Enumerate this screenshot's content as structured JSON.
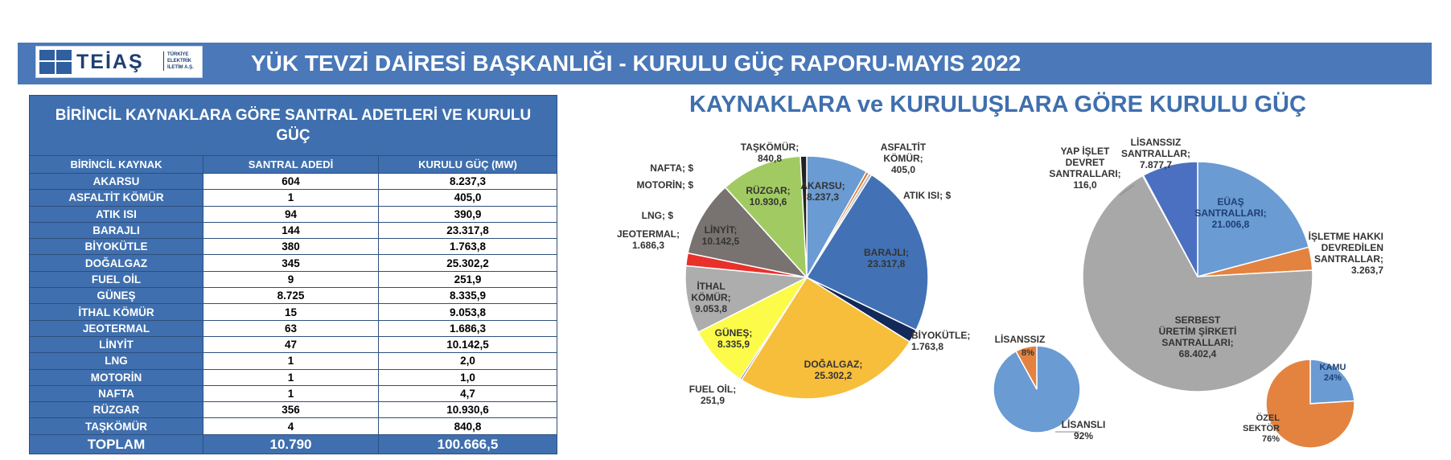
{
  "banner": {
    "title": "YÜK TEVZİ DAİRESİ BAŞKANLIĞI - KURULU GÜÇ RAPORU-MAYIS 2022",
    "logo_text": "TEİAŞ",
    "logo_sub": "TÜRKİYE ELEKTRİK İLETİM A.Ş.",
    "color": "#4a78b8"
  },
  "table": {
    "title": "BİRİNCİL KAYNAKLARA GÖRE SANTRAL ADETLERİ VE KURULU GÜÇ",
    "headers": [
      "BİRİNCİL KAYNAK",
      "SANTRAL ADEDİ",
      "KURULU GÜÇ (MW)"
    ],
    "rows": [
      {
        "source": "AKARSU",
        "count": "604",
        "power": "8.237,3"
      },
      {
        "source": "ASFALTİT KÖMÜR",
        "count": "1",
        "power": "405,0"
      },
      {
        "source": "ATIK ISI",
        "count": "94",
        "power": "390,9"
      },
      {
        "source": "BARAJLI",
        "count": "144",
        "power": "23.317,8"
      },
      {
        "source": "BİYOKÜTLE",
        "count": "380",
        "power": "1.763,8"
      },
      {
        "source": "DOĞALGAZ",
        "count": "345",
        "power": "25.302,2"
      },
      {
        "source": "FUEL OİL",
        "count": "9",
        "power": "251,9"
      },
      {
        "source": "GÜNEŞ",
        "count": "8.725",
        "power": "8.335,9"
      },
      {
        "source": "İTHAL KÖMÜR",
        "count": "15",
        "power": "9.053,8"
      },
      {
        "source": "JEOTERMAL",
        "count": "63",
        "power": "1.686,3"
      },
      {
        "source": "LİNYİT",
        "count": "47",
        "power": "10.142,5"
      },
      {
        "source": "LNG",
        "count": "1",
        "power": "2,0"
      },
      {
        "source": "MOTORİN",
        "count": "1",
        "power": "1,0"
      },
      {
        "source": "NAFTA",
        "count": "1",
        "power": "4,7"
      },
      {
        "source": "RÜZGAR",
        "count": "356",
        "power": "10.930,6"
      },
      {
        "source": "TAŞKÖMÜR",
        "count": "4",
        "power": "840,8"
      }
    ],
    "total": {
      "label": "TOPLAM",
      "count": "10.790",
      "power": "100.666,5"
    }
  },
  "charts_title": "KAYNAKLARA ve KURULUŞLARA GÖRE KURULU GÜÇ",
  "chart_data": [
    {
      "type": "pie",
      "title": "",
      "start_angle_deg": 0,
      "slices": [
        {
          "label": "AKARSU",
          "value": 8237.3,
          "value_text": "8.237,3",
          "color": "#6a9bd3"
        },
        {
          "label": "ASFALTİT KÖMÜR",
          "value": 405.0,
          "value_text": "405,0",
          "color": "#d9772f"
        },
        {
          "label": "ATIK ISI",
          "value": 390.9,
          "value_text": "390,9",
          "color": "#b7b7b7"
        },
        {
          "label": "BARAJLI",
          "value": 23317.8,
          "value_text": "23.317,8",
          "color": "#4272b5"
        },
        {
          "label": "BİYOKÜTLE",
          "value": 1763.8,
          "value_text": "1.763,8",
          "color": "#13295a"
        },
        {
          "label": "DOĞALGAZ",
          "value": 25302.2,
          "value_text": "25.302,2",
          "color": "#f7be3b"
        },
        {
          "label": "FUEL OİL",
          "value": 251.9,
          "value_text": "251,9",
          "color": "#6a4f9e"
        },
        {
          "label": "GÜNEŞ",
          "value": 8335.9,
          "value_text": "8.335,9",
          "color": "#fcfb4a"
        },
        {
          "label": "İTHAL KÖMÜR",
          "value": 9053.8,
          "value_text": "9.053,8",
          "color": "#adadad"
        },
        {
          "label": "JEOTERMAL",
          "value": 1686.3,
          "value_text": "1.686,3",
          "color": "#e8312a"
        },
        {
          "label": "LİNYİT",
          "value": 10142.5,
          "value_text": "10.142,5",
          "color": "#787370"
        },
        {
          "label": "LNG",
          "value": 2.0,
          "value_text": "2,0",
          "color": "#5b8a3c"
        },
        {
          "label": "MOTORİN",
          "value": 1.0,
          "value_text": "1,0",
          "color": "#2e6f9e"
        },
        {
          "label": "NAFTA",
          "value": 4.7,
          "value_text": "4,7",
          "color": "#8c564b"
        },
        {
          "label": "RÜZGAR",
          "value": 10930.6,
          "value_text": "10.930,6",
          "color": "#a1cb62"
        },
        {
          "label": "TAŞKÖMÜR",
          "value": 840.8,
          "value_text": "840,8",
          "color": "#222222"
        }
      ]
    },
    {
      "type": "pie",
      "title": "",
      "start_angle_deg": 0,
      "slices": [
        {
          "label": "EÜAŞ SANTRALLARI",
          "value": 21006.8,
          "value_text": "21.006,8",
          "color": "#6a9bd3"
        },
        {
          "label": "İŞLETME HAKKI DEVREDİLEN SANTRALLAR",
          "value": 3263.7,
          "value_text": "3.263,7",
          "color": "#e3833f"
        },
        {
          "label": "SERBEST ÜRETİM ŞİRKETİ SANTRALLARI",
          "value": 68402.4,
          "value_text": "68.402,4",
          "color": "#a8a8a8"
        },
        {
          "label": "YAP İŞLET DEVRET SANTRALLARI",
          "value": 116.0,
          "value_text": "116,0",
          "color": "#f2c14e"
        },
        {
          "label": "LİSANSSIZ SANTRALLAR",
          "value": 7877.7,
          "value_text": "7.877,7",
          "color": "#4b70c1"
        }
      ]
    },
    {
      "type": "pie",
      "title": "",
      "start_angle_deg": 0,
      "slices": [
        {
          "label": "LİSANSLI",
          "value": 92,
          "value_text": "92%",
          "color": "#6a9bd3"
        },
        {
          "label": "LİSANSSIZ",
          "value": 8,
          "value_text": "8%",
          "color": "#e3833f"
        }
      ]
    },
    {
      "type": "pie",
      "title": "",
      "start_angle_deg": 0,
      "slices": [
        {
          "label": "KAMU",
          "value": 24,
          "value_text": "24%",
          "color": "#6a9bd3"
        },
        {
          "label": "ÖZEL SEKTÖR",
          "value": 76,
          "value_text": "76%",
          "color": "#e3833f"
        }
      ]
    }
  ]
}
